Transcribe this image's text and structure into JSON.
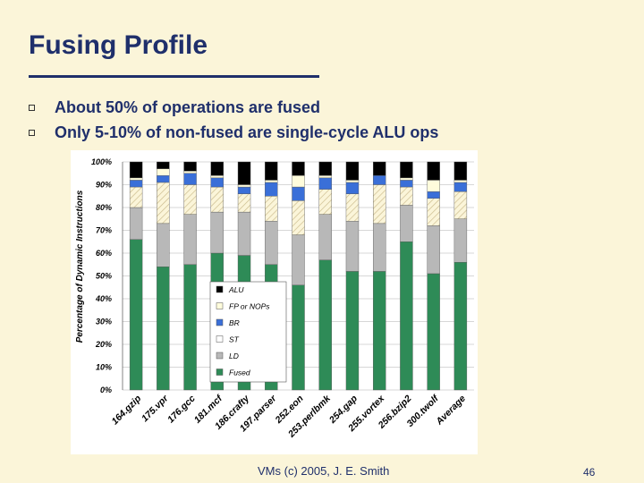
{
  "slide": {
    "title": "Fusing Profile",
    "bullets": [
      "About 50% of operations are fused",
      "Only 5-10% of non-fused are single-cycle ALU ops"
    ],
    "footer": "VMs (c) 2005, J. E. Smith",
    "page_number": "46"
  },
  "chart_data": {
    "type": "bar",
    "stacked": true,
    "ylabel": "Percentage of Dynamic Instructions",
    "ylim": [
      0,
      100
    ],
    "yticks": [
      "0%",
      "10%",
      "20%",
      "30%",
      "40%",
      "50%",
      "60%",
      "70%",
      "80%",
      "90%",
      "100%"
    ],
    "categories": [
      "164.gzip",
      "175.vpr",
      "176.gcc",
      "181.mcf",
      "186.crafty",
      "197.parser",
      "252.eon",
      "253.perlbmk",
      "254.gap",
      "255.vortex",
      "256.bzip2",
      "300.twolf",
      "Average"
    ],
    "series": [
      {
        "name": "Fused",
        "color": "#2e8b57",
        "pattern": "solid",
        "values": [
          66,
          54,
          55,
          60,
          59,
          55,
          46,
          57,
          52,
          52,
          65,
          51,
          56
        ]
      },
      {
        "name": "LD",
        "color": "#b8b8b8",
        "pattern": "solid",
        "values": [
          14,
          19,
          22,
          18,
          19,
          19,
          22,
          20,
          22,
          21,
          16,
          21,
          19
        ]
      },
      {
        "name": "ST",
        "color": "#fbf5d9",
        "pattern": "hatch",
        "values": [
          9,
          18,
          13,
          11,
          8,
          11,
          15,
          11,
          12,
          17,
          8,
          12,
          12
        ]
      },
      {
        "name": "BR",
        "color": "#3a6fd8",
        "pattern": "solid",
        "values": [
          3,
          3,
          5,
          4,
          3,
          6,
          6,
          5,
          5,
          4,
          3,
          3,
          4
        ]
      },
      {
        "name": "FP or NOPs",
        "color": "#fffcdc",
        "pattern": "solid",
        "values": [
          1,
          3,
          1,
          1,
          1,
          1,
          5,
          1,
          1,
          0,
          1,
          5,
          1
        ]
      },
      {
        "name": "ALU",
        "color": "#000000",
        "pattern": "solid",
        "values": [
          7,
          3,
          4,
          6,
          10,
          8,
          6,
          6,
          8,
          6,
          7,
          8,
          8
        ]
      }
    ],
    "legend_order": [
      "ALU",
      "FP or NOPs",
      "BR",
      "ST",
      "LD",
      "Fused"
    ],
    "legend_position": "inside-center"
  }
}
